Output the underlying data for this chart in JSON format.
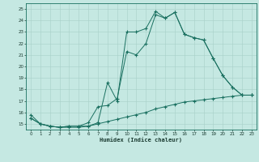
{
  "xlabel": "Humidex (Indice chaleur)",
  "bg_color": "#c5e8e2",
  "grid_color": "#a8d0c8",
  "line_color": "#1a7060",
  "xlim": [
    -0.5,
    23.5
  ],
  "ylim": [
    14.5,
    25.5
  ],
  "xticks": [
    0,
    1,
    2,
    3,
    4,
    5,
    6,
    7,
    8,
    9,
    10,
    11,
    12,
    13,
    14,
    15,
    16,
    17,
    18,
    19,
    20,
    21,
    22,
    23
  ],
  "yticks": [
    15,
    16,
    17,
    18,
    19,
    20,
    21,
    22,
    23,
    24,
    25
  ],
  "line1_x": [
    0,
    1,
    2,
    3,
    4,
    5,
    6,
    7,
    8,
    9,
    10,
    11,
    12,
    13,
    14,
    15,
    16,
    17,
    18,
    19,
    20,
    21,
    22,
    23
  ],
  "line1_y": [
    15.8,
    15.0,
    14.8,
    14.7,
    14.8,
    14.8,
    14.8,
    15.1,
    18.6,
    17.0,
    23.0,
    23.0,
    23.3,
    24.8,
    24.2,
    24.7,
    22.8,
    22.5,
    22.3,
    20.7,
    19.2,
    18.2,
    17.5,
    17.5
  ],
  "line2_x": [
    0,
    1,
    2,
    3,
    4,
    5,
    6,
    7,
    8,
    9,
    10,
    11,
    12,
    13,
    14,
    15,
    16,
    17,
    18,
    19,
    20,
    21,
    22,
    23
  ],
  "line2_y": [
    15.5,
    15.0,
    14.8,
    14.7,
    14.8,
    14.8,
    15.1,
    16.5,
    16.6,
    17.2,
    21.3,
    21.0,
    22.0,
    24.5,
    24.2,
    24.7,
    22.8,
    22.5,
    22.3,
    20.7,
    19.2,
    18.2,
    17.5,
    17.5
  ],
  "line3_x": [
    0,
    1,
    2,
    3,
    4,
    5,
    6,
    7,
    8,
    9,
    10,
    11,
    12,
    13,
    14,
    15,
    16,
    17,
    18,
    19,
    20,
    21,
    22,
    23
  ],
  "line3_y": [
    15.5,
    15.0,
    14.8,
    14.7,
    14.7,
    14.7,
    14.8,
    15.0,
    15.2,
    15.4,
    15.6,
    15.8,
    16.0,
    16.3,
    16.5,
    16.7,
    16.9,
    17.0,
    17.1,
    17.2,
    17.3,
    17.4,
    17.5,
    17.5
  ]
}
